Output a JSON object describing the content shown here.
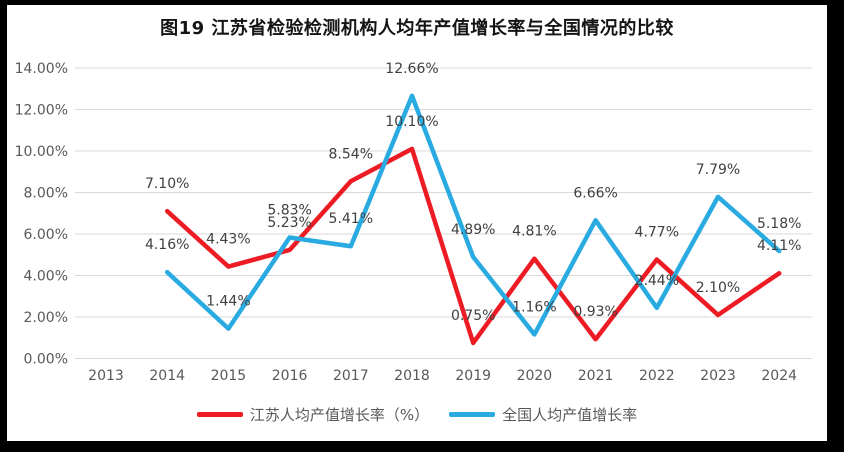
{
  "frame": {
    "border_color": "#000000",
    "canvas_background": "#ffffff"
  },
  "chart_data": {
    "type": "line",
    "title": "图19 江苏省检验检测机构人均年产值增长率与全国情况的比较",
    "xlabel": "",
    "ylabel": "",
    "categories": [
      "2013",
      "2014",
      "2015",
      "2016",
      "2017",
      "2018",
      "2019",
      "2020",
      "2021",
      "2022",
      "2023",
      "2024"
    ],
    "series": [
      {
        "key": "jiangsu",
        "name": "江苏人均产值增长率（%）",
        "color": "#ed1c24",
        "values": [
          null,
          7.1,
          4.43,
          5.23,
          8.54,
          10.1,
          0.75,
          4.81,
          0.93,
          4.77,
          2.1,
          4.11
        ],
        "labels": [
          null,
          "7.10%",
          "4.43%",
          "5.23%",
          "8.54%",
          "10.10%",
          "0.75%",
          "4.81%",
          "0.93%",
          "4.77%",
          "2.10%",
          "4.11%"
        ]
      },
      {
        "key": "national",
        "name": "全国人均产值增长率",
        "color": "#29abe2",
        "values": [
          null,
          4.16,
          1.44,
          5.83,
          5.41,
          12.66,
          4.89,
          1.16,
          6.66,
          2.44,
          7.79,
          5.18
        ],
        "labels": [
          null,
          "4.16%",
          "1.44%",
          "5.83%",
          "5.41%",
          "12.66%",
          "4.89%",
          "1.16%",
          "6.66%",
          "2.44%",
          "7.79%",
          "5.18%"
        ]
      }
    ],
    "ylim": [
      0,
      14
    ],
    "y_step": 2,
    "y_tick_labels": [
      "0.00%",
      "2.00%",
      "4.00%",
      "6.00%",
      "8.00%",
      "10.00%",
      "12.00%",
      "14.00%"
    ],
    "grid": true,
    "legend_position": "bottom",
    "colors": {
      "grid": "#d9d9d9",
      "axis_text": "#595959",
      "data_label": "#404040",
      "title_text": "#141414",
      "legend_text": "#595959"
    }
  }
}
